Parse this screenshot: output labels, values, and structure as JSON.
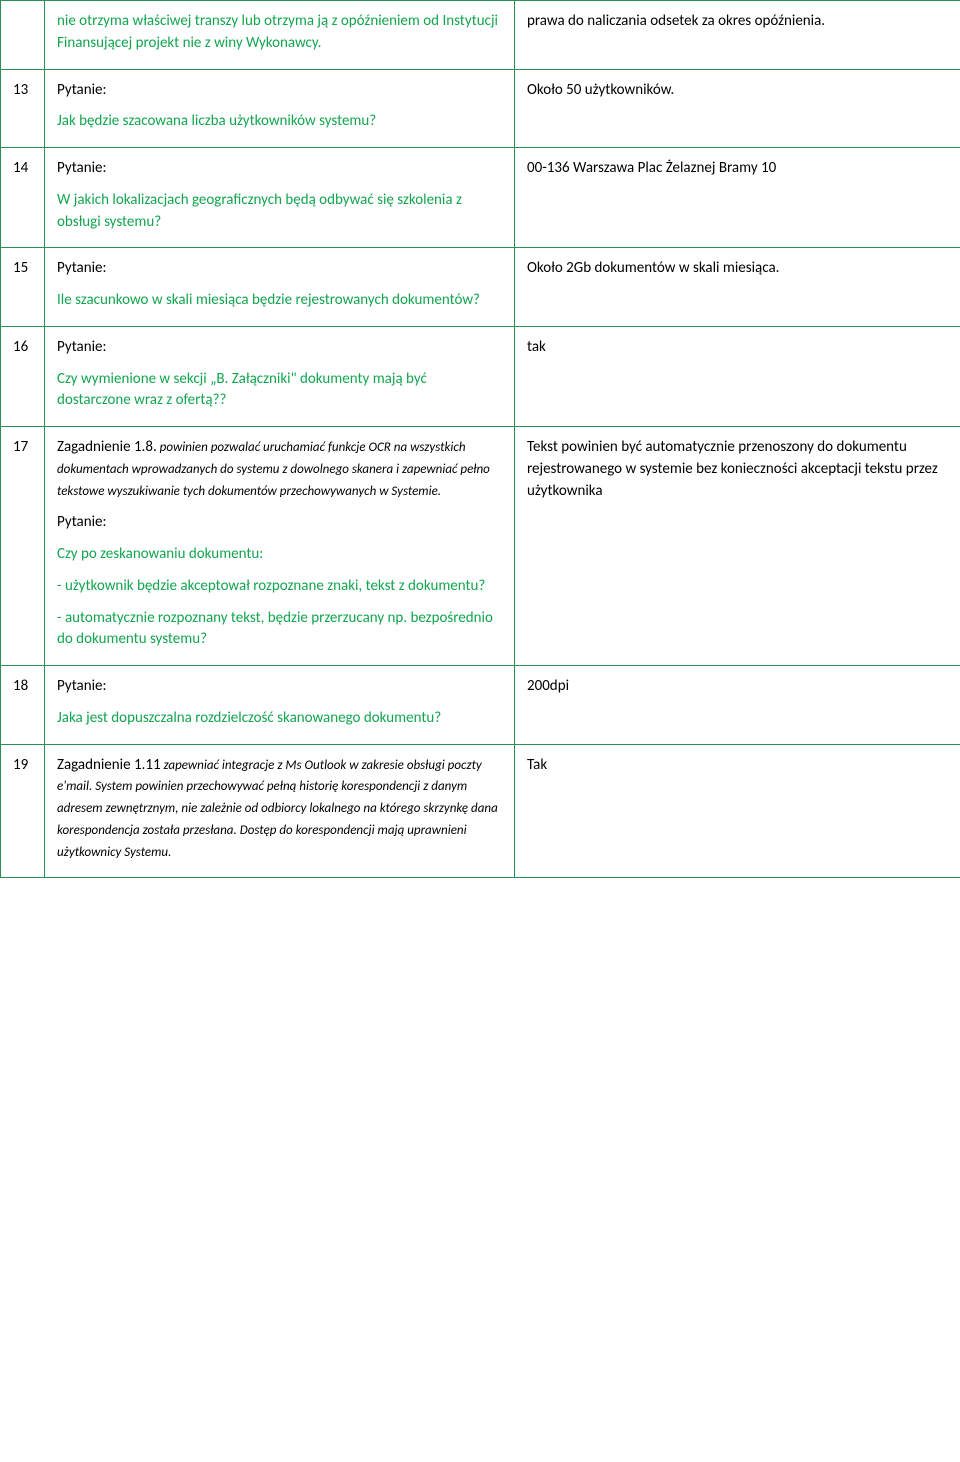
{
  "colors": {
    "border": "#2e8b57",
    "greenText": "#13a54f",
    "blackText": "#000000",
    "background": "#ffffff"
  },
  "rows": [
    {
      "num": "",
      "q_green": "nie otrzyma właściwej transzy lub otrzyma ją z opóźnieniem od Instytucji Finansującej projekt nie z winy Wykonawcy.",
      "a": "prawa do naliczania odsetek za okres opóźnienia."
    },
    {
      "num": "13",
      "q_label": "Pytanie:",
      "q_green": "Jak będzie szacowana liczba użytkowników systemu?",
      "a": "Około 50 użytkowników."
    },
    {
      "num": "14",
      "q_label": "Pytanie:",
      "q_green": "W jakich lokalizacjach geograficznych będą odbywać się szkolenia z obsługi systemu?",
      "a": "00-136 Warszawa Plac Żelaznej Bramy 10"
    },
    {
      "num": "15",
      "q_label": "Pytanie:",
      "q_green": "Ile szacunkowo w skali miesiąca będzie rejestrowanych dokumentów?",
      "a": "Około 2Gb dokumentów w skali miesiąca."
    },
    {
      "num": "16",
      "q_label": "Pytanie:",
      "q_green": "Czy wymienione w sekcji „B. Załączniki\" dokumenty mają być dostarczone wraz z ofertą??",
      "a": "tak"
    },
    {
      "num": "17",
      "q_intro_black": "Zagadnienie 1.8.",
      "q_intro_italic": " powinien pozwalać uruchamiać funkcje OCR na wszystkich dokumentach wprowadzanych do systemu z dowolnego skanera i zapewniać pełno tekstowe wyszukiwanie tych dokumentów przechowywanych w Systemie.",
      "q_label": "Pytanie:",
      "q_green_1": "Czy po zeskanowaniu dokumentu:",
      "q_green_2": "- użytkownik będzie akceptował rozpoznane znaki, tekst z dokumentu?",
      "q_green_3": "- automatycznie rozpoznany tekst, będzie przerzucany np. bezpośrednio do dokumentu systemu?",
      "a": "Tekst powinien być automatycznie przenoszony do dokumentu rejestrowanego w systemie bez konieczności akceptacji tekstu przez użytkownika"
    },
    {
      "num": "18",
      "q_label": "Pytanie:",
      "q_green": "Jaka jest dopuszczalna rozdzielczość skanowanego dokumentu?",
      "a": "200dpi"
    },
    {
      "num": "19",
      "q_intro_black": "Zagadnienie 1.11",
      "q_intro_italic": " zapewniać integracje z Ms Outlook w zakresie obsługi poczty e'mail. System powinien przechowywać pełną historię korespondencji z danym adresem zewnętrznym, nie zależnie od odbiorcy lokalnego na którego skrzynkę dana korespondencja została przesłana. Dostęp do korespondencji mają uprawnieni użytkownicy Systemu.",
      "a": "Tak"
    }
  ]
}
